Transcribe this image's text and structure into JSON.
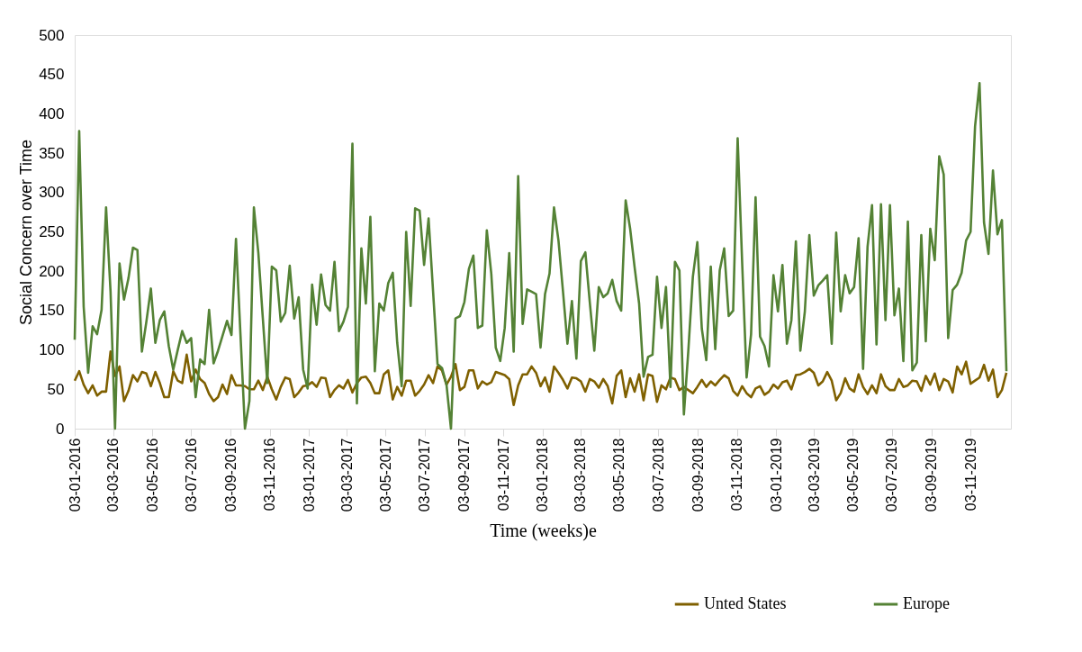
{
  "chart_data": {
    "type": "line",
    "xlabel": "Time (weeks)e",
    "ylabel": "Social Concern over Time",
    "ylim": [
      0,
      500
    ],
    "yticks": [
      0,
      50,
      100,
      150,
      200,
      250,
      300,
      350,
      400,
      450,
      500
    ],
    "xlim": [
      "2016-01-03",
      "2020-01-05"
    ],
    "xticks": [
      {
        "value": "2016-01-03",
        "label": "03-01-2016"
      },
      {
        "value": "2016-03-03",
        "label": "03-03-2016"
      },
      {
        "value": "2016-05-03",
        "label": "03-05-2016"
      },
      {
        "value": "2016-07-03",
        "label": "03-07-2016"
      },
      {
        "value": "2016-09-03",
        "label": "03-09-2016"
      },
      {
        "value": "2016-11-03",
        "label": "03-11-2016"
      },
      {
        "value": "2017-01-03",
        "label": "03-01-2017"
      },
      {
        "value": "2017-03-03",
        "label": "03-03-2017"
      },
      {
        "value": "2017-05-03",
        "label": "03-05-2017"
      },
      {
        "value": "2017-07-03",
        "label": "03-07-2017"
      },
      {
        "value": "2017-09-03",
        "label": "03-09-2017"
      },
      {
        "value": "2017-11-03",
        "label": "03-11-2017"
      },
      {
        "value": "2018-01-03",
        "label": "03-01-2018"
      },
      {
        "value": "2018-03-03",
        "label": "03-03-2018"
      },
      {
        "value": "2018-05-03",
        "label": "03-05-2018"
      },
      {
        "value": "2018-07-03",
        "label": "03-07-2018"
      },
      {
        "value": "2018-09-03",
        "label": "03-09-2018"
      },
      {
        "value": "2018-11-03",
        "label": "03-11-2018"
      },
      {
        "value": "2019-01-03",
        "label": "03-01-2019"
      },
      {
        "value": "2019-03-03",
        "label": "03-03-2019"
      },
      {
        "value": "2019-05-03",
        "label": "03-05-2019"
      },
      {
        "value": "2019-07-03",
        "label": "03-07-2019"
      },
      {
        "value": "2019-09-03",
        "label": "03-09-2019"
      },
      {
        "value": "2019-11-03",
        "label": "03-11-2019"
      }
    ],
    "x": [
      "2016-01-03",
      "2016-01-10",
      "2016-01-17",
      "2016-01-24",
      "2016-01-31",
      "2016-02-07",
      "2016-02-14",
      "2016-02-21",
      "2016-02-28",
      "2016-03-06",
      "2016-03-13",
      "2016-03-20",
      "2016-03-27",
      "2016-04-03",
      "2016-04-10",
      "2016-04-17",
      "2016-04-24",
      "2016-05-01",
      "2016-05-08",
      "2016-05-15",
      "2016-05-22",
      "2016-05-29",
      "2016-06-05",
      "2016-06-12",
      "2016-06-19",
      "2016-06-26",
      "2016-07-03",
      "2016-07-10",
      "2016-07-17",
      "2016-07-24",
      "2016-07-31",
      "2016-08-07",
      "2016-08-14",
      "2016-08-21",
      "2016-08-28",
      "2016-09-04",
      "2016-09-11",
      "2016-09-18",
      "2016-09-25",
      "2016-10-02",
      "2016-10-09",
      "2016-10-16",
      "2016-10-23",
      "2016-10-30",
      "2016-11-06",
      "2016-11-13",
      "2016-11-20",
      "2016-11-27",
      "2016-12-04",
      "2016-12-11",
      "2016-12-18",
      "2016-12-25",
      "2017-01-01",
      "2017-01-08",
      "2017-01-15",
      "2017-01-22",
      "2017-01-29",
      "2017-02-05",
      "2017-02-12",
      "2017-02-19",
      "2017-02-26",
      "2017-03-05",
      "2017-03-12",
      "2017-03-19",
      "2017-03-26",
      "2017-04-02",
      "2017-04-09",
      "2017-04-16",
      "2017-04-23",
      "2017-04-30",
      "2017-05-07",
      "2017-05-14",
      "2017-05-21",
      "2017-05-28",
      "2017-06-04",
      "2017-06-11",
      "2017-06-18",
      "2017-06-25",
      "2017-07-02",
      "2017-07-09",
      "2017-07-16",
      "2017-07-23",
      "2017-07-30",
      "2017-08-06",
      "2017-08-13",
      "2017-08-20",
      "2017-08-27",
      "2017-09-03",
      "2017-09-10",
      "2017-09-17",
      "2017-09-24",
      "2017-10-01",
      "2017-10-08",
      "2017-10-15",
      "2017-10-22",
      "2017-10-29",
      "2017-11-05",
      "2017-11-12",
      "2017-11-19",
      "2017-11-26",
      "2017-12-03",
      "2017-12-10",
      "2017-12-17",
      "2017-12-24",
      "2017-12-31",
      "2018-01-07",
      "2018-01-14",
      "2018-01-21",
      "2018-01-28",
      "2018-02-04",
      "2018-02-11",
      "2018-02-18",
      "2018-02-25",
      "2018-03-04",
      "2018-03-11",
      "2018-03-18",
      "2018-03-25",
      "2018-04-01",
      "2018-04-08",
      "2018-04-15",
      "2018-04-22",
      "2018-04-29",
      "2018-05-06",
      "2018-05-13",
      "2018-05-20",
      "2018-05-27",
      "2018-06-03",
      "2018-06-10",
      "2018-06-17",
      "2018-06-24",
      "2018-07-01",
      "2018-07-08",
      "2018-07-15",
      "2018-07-22",
      "2018-07-29",
      "2018-08-05",
      "2018-08-12",
      "2018-08-19",
      "2018-08-26",
      "2018-09-02",
      "2018-09-09",
      "2018-09-16",
      "2018-09-23",
      "2018-09-30",
      "2018-10-07",
      "2018-10-14",
      "2018-10-21",
      "2018-10-28",
      "2018-11-04",
      "2018-11-11",
      "2018-11-18",
      "2018-11-25",
      "2018-12-02",
      "2018-12-09",
      "2018-12-16",
      "2018-12-23",
      "2018-12-30",
      "2019-01-06",
      "2019-01-13",
      "2019-01-20",
      "2019-01-27",
      "2019-02-03",
      "2019-02-10",
      "2019-02-17",
      "2019-02-24",
      "2019-03-03",
      "2019-03-10",
      "2019-03-17",
      "2019-03-24",
      "2019-03-31",
      "2019-04-07",
      "2019-04-14",
      "2019-04-21",
      "2019-04-28",
      "2019-05-05",
      "2019-05-12",
      "2019-05-19",
      "2019-05-26",
      "2019-06-02",
      "2019-06-09",
      "2019-06-16",
      "2019-06-23",
      "2019-06-30",
      "2019-07-07",
      "2019-07-14",
      "2019-07-21",
      "2019-07-28",
      "2019-08-04",
      "2019-08-11",
      "2019-08-18",
      "2019-08-25",
      "2019-09-01",
      "2019-09-08",
      "2019-09-15",
      "2019-09-22",
      "2019-09-29",
      "2019-10-06",
      "2019-10-13",
      "2019-10-20",
      "2019-10-27",
      "2019-11-03",
      "2019-11-10",
      "2019-11-17",
      "2019-11-24",
      "2019-12-01",
      "2019-12-08",
      "2019-12-15",
      "2019-12-22",
      "2019-12-29"
    ],
    "series": [
      {
        "name": "Unted States",
        "color": "#7f6000",
        "values": [
          61,
          73,
          56,
          45,
          55,
          42,
          47,
          47,
          98,
          67,
          79,
          35,
          48,
          68,
          60,
          72,
          70,
          54,
          72,
          58,
          40,
          40,
          73,
          61,
          58,
          94,
          60,
          75,
          63,
          58,
          44,
          35,
          40,
          56,
          44,
          68,
          55,
          55,
          54,
          50,
          50,
          61,
          49,
          66,
          50,
          37,
          53,
          65,
          63,
          40,
          46,
          54,
          55,
          59,
          53,
          65,
          64,
          40,
          49,
          55,
          51,
          62,
          46,
          58,
          65,
          66,
          58,
          45,
          45,
          69,
          74,
          37,
          53,
          42,
          61,
          61,
          42,
          48,
          56,
          68,
          58,
          79,
          74,
          56,
          66,
          82,
          49,
          53,
          74,
          74,
          51,
          60,
          56,
          59,
          72,
          70,
          68,
          63,
          30,
          55,
          69,
          69,
          79,
          71,
          54,
          65,
          47,
          79,
          71,
          62,
          51,
          65,
          64,
          60,
          47,
          63,
          60,
          52,
          63,
          54,
          32,
          67,
          74,
          40,
          64,
          47,
          69,
          36,
          69,
          67,
          34,
          55,
          50,
          65,
          63,
          49,
          53,
          49,
          45,
          53,
          62,
          53,
          60,
          55,
          62,
          68,
          64,
          48,
          42,
          54,
          45,
          40,
          51,
          54,
          43,
          47,
          56,
          51,
          59,
          61,
          50,
          68,
          69,
          72,
          76,
          71,
          55,
          60,
          72,
          61,
          36,
          45,
          64,
          51,
          47,
          69,
          53,
          44,
          55,
          45,
          69,
          54,
          49,
          49,
          63,
          53,
          55,
          61,
          60,
          48,
          67,
          56,
          70,
          49,
          63,
          60,
          46,
          79,
          69,
          85,
          57,
          61,
          65,
          81,
          61,
          75,
          40,
          49,
          71
        ]
      },
      {
        "name": "Europe",
        "color": "#548235",
        "values": [
          113,
          378,
          155,
          71,
          130,
          120,
          151,
          281,
          174,
          0,
          210,
          164,
          191,
          230,
          227,
          98,
          136,
          178,
          109,
          138,
          149,
          105,
          75,
          100,
          124,
          109,
          115,
          40,
          88,
          82,
          151,
          83,
          99,
          118,
          137,
          119,
          241,
          120,
          0,
          35,
          281,
          223,
          140,
          58,
          206,
          201,
          136,
          147,
          207,
          140,
          167,
          75,
          51,
          183,
          132,
          196,
          157,
          150,
          212,
          124,
          136,
          155,
          362,
          32,
          229,
          159,
          269,
          73,
          159,
          150,
          185,
          198,
          109,
          54,
          250,
          156,
          280,
          277,
          208,
          267,
          175,
          82,
          77,
          56,
          0,
          140,
          143,
          161,
          203,
          220,
          128,
          131,
          252,
          197,
          103,
          86,
          128,
          223,
          98,
          321,
          133,
          177,
          174,
          171,
          103,
          171,
          197,
          281,
          239,
          175,
          108,
          162,
          89,
          213,
          224,
          160,
          99,
          180,
          167,
          172,
          189,
          162,
          150,
          290,
          254,
          205,
          159,
          66,
          91,
          94,
          193,
          128,
          180,
          53,
          212,
          201,
          18,
          100,
          193,
          237,
          127,
          87,
          206,
          101,
          201,
          229,
          143,
          150,
          369,
          212,
          65,
          120,
          294,
          117,
          105,
          79,
          195,
          149,
          208,
          108,
          138,
          238,
          99,
          149,
          246,
          169,
          182,
          188,
          195,
          108,
          249,
          149,
          195,
          172,
          180,
          242,
          76,
          231,
          284,
          107,
          285,
          138,
          284,
          144,
          178,
          86,
          263,
          74,
          84,
          246,
          111,
          254,
          214,
          346,
          323,
          115,
          176,
          183,
          198,
          239,
          250,
          384,
          439,
          262,
          222,
          328,
          247,
          265,
          73
        ]
      }
    ],
    "legend": "bottom right",
    "grid": false,
    "marker": "none",
    "line_style": "solid"
  }
}
